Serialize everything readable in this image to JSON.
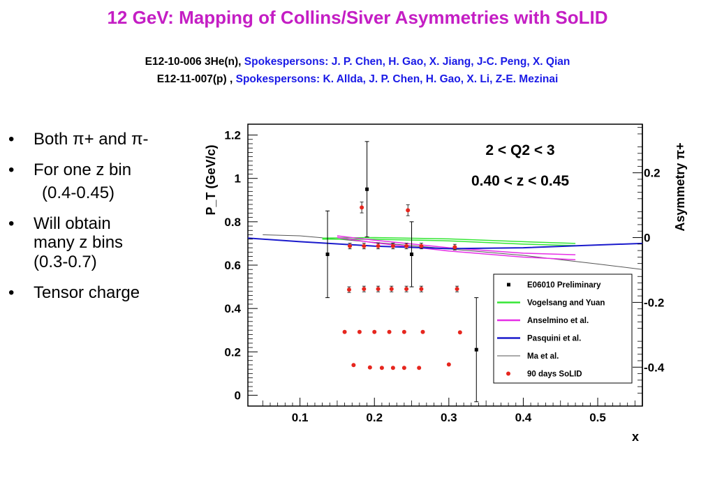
{
  "slide": {
    "title": "12 GeV: Mapping of Collins/Siver Asymmetries with SoLID",
    "sub1_exp": "E12-10-006 3He(n),",
    "sub1_spk": "Spokespersons: J. P. Chen, H. Gao, X. Jiang, J-C. Peng, X. Qian",
    "sub2_exp": "E12-11-007(p) ,",
    "sub2_spk": "Spokespersons: K. Allda, J. P. Chen, H. Gao, X. Li, Z-E. Mezinai"
  },
  "bullets": {
    "b1": "Both π+ and π-",
    "b2": "For one z bin",
    "b2_indent": "(0.4-0.45)",
    "b3": "Will obtain\nmany z bins\n(0.3-0.7)",
    "b4": "Tensor charge"
  },
  "colors": {
    "title": "#c41ec4",
    "spokes": "#1a1ae6",
    "e06010": "#000000",
    "vogelsang": "#35e635",
    "anselmino": "#e62ee6",
    "pasquini": "#1a1acc",
    "ma": "#555555",
    "solid": "#e6261e"
  },
  "chart_data": {
    "type": "scatter",
    "xlabel": "x",
    "ylabel": "P_T (GeV/c)",
    "y2label": "Asymmetry π+",
    "xlim": [
      0.03,
      0.56
    ],
    "ylim": [
      -0.05,
      1.25
    ],
    "y2lim": [
      -0.52,
      0.35
    ],
    "xticks": [
      "0.1",
      "0.2",
      "0.3",
      "0.4",
      "0.5"
    ],
    "yticks": [
      "0",
      "0.2",
      "0.4",
      "0.6",
      "0.8",
      "1",
      "1.2"
    ],
    "y2ticks": [
      "0.2",
      "0",
      "-0.2",
      "-0.4"
    ],
    "annotations": [
      "2 < Q2 < 3",
      "0.40 < z < 0.45"
    ],
    "legend_position": "bottom-right",
    "series": [
      {
        "name": "E06010 Preliminary",
        "kind": "points-errors",
        "x": [
          0.137,
          0.19,
          0.25,
          0.337
        ],
        "y": [
          0.65,
          0.95,
          0.65,
          0.21
        ],
        "yerr_low": [
          0.2,
          0.22,
          0.15,
          0.24
        ],
        "yerr_high": [
          0.2,
          0.22,
          0.15,
          0.24
        ]
      },
      {
        "name": "Vogelsang and Yuan",
        "kind": "band",
        "x": [
          0.13,
          0.2,
          0.3,
          0.4,
          0.47
        ],
        "y_high": [
          0.725,
          0.727,
          0.721,
          0.708,
          0.7
        ],
        "y_low": [
          0.72,
          0.719,
          0.712,
          0.697,
          0.69
        ]
      },
      {
        "name": "Anselmino et al.",
        "kind": "band",
        "x": [
          0.15,
          0.2,
          0.3,
          0.4,
          0.47
        ],
        "y_high": [
          0.735,
          0.715,
          0.68,
          0.655,
          0.648
        ],
        "y_low": [
          0.728,
          0.703,
          0.665,
          0.637,
          0.625
        ]
      },
      {
        "name": "Pasquini et al.",
        "kind": "line",
        "x": [
          0.03,
          0.1,
          0.2,
          0.3,
          0.4,
          0.5,
          0.56
        ],
        "y": [
          0.725,
          0.708,
          0.688,
          0.676,
          0.68,
          0.693,
          0.7
        ]
      },
      {
        "name": "Ma et al.",
        "kind": "line",
        "x": [
          0.05,
          0.1,
          0.2,
          0.3,
          0.4,
          0.5,
          0.56
        ],
        "y": [
          0.74,
          0.735,
          0.705,
          0.675,
          0.645,
          0.605,
          0.58
        ]
      },
      {
        "name": "90 days SoLID",
        "kind": "points-errors",
        "x": [
          0.183,
          0.245,
          0.167,
          0.186,
          0.205,
          0.225,
          0.243,
          0.263,
          0.308,
          0.166,
          0.186,
          0.205,
          0.223,
          0.243,
          0.263,
          0.311,
          0.16,
          0.18,
          0.2,
          0.22,
          0.24,
          0.265,
          0.315,
          0.172,
          0.194,
          0.21,
          0.225,
          0.24,
          0.26,
          0.3
        ],
        "y": [
          0.866,
          0.853,
          0.688,
          0.688,
          0.688,
          0.688,
          0.688,
          0.688,
          0.683,
          0.487,
          0.49,
          0.49,
          0.49,
          0.49,
          0.49,
          0.49,
          0.292,
          0.292,
          0.292,
          0.292,
          0.292,
          0.292,
          0.29,
          0.139,
          0.128,
          0.126,
          0.126,
          0.126,
          0.126,
          0.142
        ],
        "yerr_low": [
          0.025,
          0.025,
          0.013,
          0.013,
          0.013,
          0.013,
          0.013,
          0.013,
          0.013,
          0.013,
          0.013,
          0.013,
          0.013,
          0.013,
          0.013,
          0.013,
          0,
          0,
          0,
          0,
          0,
          0,
          0,
          0,
          0,
          0,
          0,
          0,
          0,
          0
        ],
        "yerr_high": [
          0.025,
          0.025,
          0.013,
          0.013,
          0.013,
          0.013,
          0.013,
          0.013,
          0.013,
          0.013,
          0.013,
          0.013,
          0.013,
          0.013,
          0.013,
          0.013,
          0,
          0,
          0,
          0,
          0,
          0,
          0,
          0,
          0,
          0,
          0,
          0,
          0,
          0
        ]
      }
    ]
  }
}
